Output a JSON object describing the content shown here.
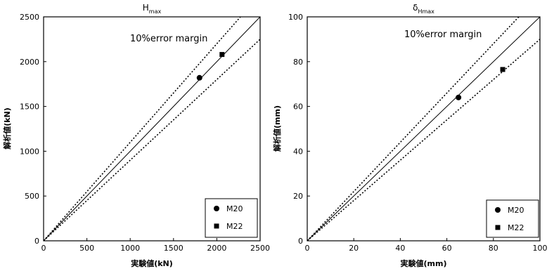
{
  "chart_data": [
    {
      "type": "scatter",
      "title": "H",
      "title_sub": "max",
      "xlabel": "実験値(kN)",
      "ylabel": "解析値(kN)",
      "xlim": [
        0,
        2500
      ],
      "ylim": [
        0,
        2500
      ],
      "xticks": [
        "0",
        "500",
        "1000",
        "1500",
        "2000",
        "2500"
      ],
      "yticks": [
        "0",
        "500",
        "1000",
        "1500",
        "2000",
        "2500"
      ],
      "annotation": "10%error margin",
      "grid": false,
      "legend_position": "bottom-right",
      "reference_lines": {
        "equality": true,
        "error_margin": 0.1
      },
      "series": [
        {
          "name": "M20",
          "marker": "circle",
          "x": [
            1800
          ],
          "y": [
            1820
          ]
        },
        {
          "name": "M22",
          "marker": "square",
          "x": [
            2060
          ],
          "y": [
            2080
          ]
        }
      ]
    },
    {
      "type": "scatter",
      "title": "δ",
      "title_sub": "Hmax",
      "xlabel": "実験値(mm)",
      "ylabel": "解析値(mm)",
      "xlim": [
        0,
        100
      ],
      "ylim": [
        0,
        100
      ],
      "xticks": [
        "0",
        "20",
        "40",
        "60",
        "80",
        "100"
      ],
      "yticks": [
        "0",
        "20",
        "40",
        "60",
        "80",
        "100"
      ],
      "annotation": "10%error margin",
      "grid": false,
      "legend_position": "bottom-right",
      "reference_lines": {
        "equality": true,
        "error_margin": 0.1
      },
      "series": [
        {
          "name": "M20",
          "marker": "circle",
          "x": [
            65
          ],
          "y": [
            64
          ]
        },
        {
          "name": "M22",
          "marker": "square",
          "x": [
            84
          ],
          "y": [
            76.5
          ]
        }
      ]
    }
  ]
}
